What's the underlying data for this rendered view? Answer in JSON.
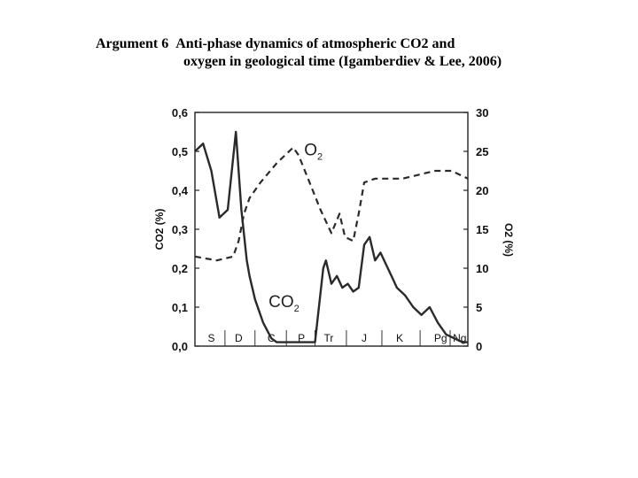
{
  "caption": {
    "prefix": "Argument 6",
    "title_line1": "Anti-phase dynamics of atmospheric CO2 and",
    "title_line2": "oxygen in geological time (Igamberdiev & Lee, 2006)"
  },
  "chart_data": {
    "type": "line",
    "y_left": {
      "label": "CO2 (%)",
      "ticks": [
        "0,0",
        "0,1",
        "0,2",
        "0,3",
        "0,4",
        "0,5",
        "0,6"
      ],
      "range": [
        0,
        0.6
      ]
    },
    "y_right": {
      "label": "O2 (%)",
      "ticks": [
        "0",
        "5",
        "10",
        "15",
        "20",
        "25",
        "30"
      ],
      "range": [
        0,
        30
      ]
    },
    "x_periods": [
      "S",
      "D",
      "C",
      "P",
      "Tr",
      "J",
      "K",
      "Pg",
      "Ng"
    ],
    "series_labels": {
      "co2": "CO2",
      "o2": "O2"
    },
    "series": [
      {
        "name": "CO2",
        "axis": "left",
        "style": "solid",
        "x": [
          0.0,
          0.03,
          0.06,
          0.09,
          0.12,
          0.15,
          0.17,
          0.19,
          0.2,
          0.22,
          0.25,
          0.28,
          0.3,
          0.33,
          0.36,
          0.4,
          0.44,
          0.47,
          0.48,
          0.5,
          0.52,
          0.54,
          0.56,
          0.58,
          0.6,
          0.62,
          0.64,
          0.66,
          0.68,
          0.7,
          0.72,
          0.74,
          0.77,
          0.8,
          0.83,
          0.86,
          0.89,
          0.92,
          0.95,
          0.98,
          1.0
        ],
        "values": [
          0.5,
          0.52,
          0.45,
          0.33,
          0.35,
          0.55,
          0.35,
          0.22,
          0.18,
          0.12,
          0.06,
          0.02,
          0.01,
          0.01,
          0.01,
          0.01,
          0.01,
          0.2,
          0.22,
          0.16,
          0.18,
          0.15,
          0.16,
          0.14,
          0.15,
          0.26,
          0.28,
          0.22,
          0.24,
          0.21,
          0.18,
          0.15,
          0.13,
          0.1,
          0.08,
          0.1,
          0.06,
          0.03,
          0.02,
          0.01,
          0.01
        ]
      },
      {
        "name": "O2",
        "axis": "right",
        "style": "dashed",
        "x": [
          0.0,
          0.08,
          0.14,
          0.16,
          0.18,
          0.2,
          0.24,
          0.3,
          0.36,
          0.38,
          0.42,
          0.46,
          0.5,
          0.53,
          0.55,
          0.58,
          0.6,
          0.62,
          0.66,
          0.7,
          0.76,
          0.82,
          0.88,
          0.94,
          1.0
        ],
        "values": [
          11.5,
          11.0,
          11.5,
          13.5,
          17.0,
          19.0,
          21.0,
          23.5,
          25.5,
          24.5,
          21.0,
          17.5,
          14.5,
          17.0,
          14.0,
          13.5,
          17.0,
          21.0,
          21.5,
          21.5,
          21.5,
          22.0,
          22.5,
          22.5,
          21.5
        ]
      }
    ]
  }
}
